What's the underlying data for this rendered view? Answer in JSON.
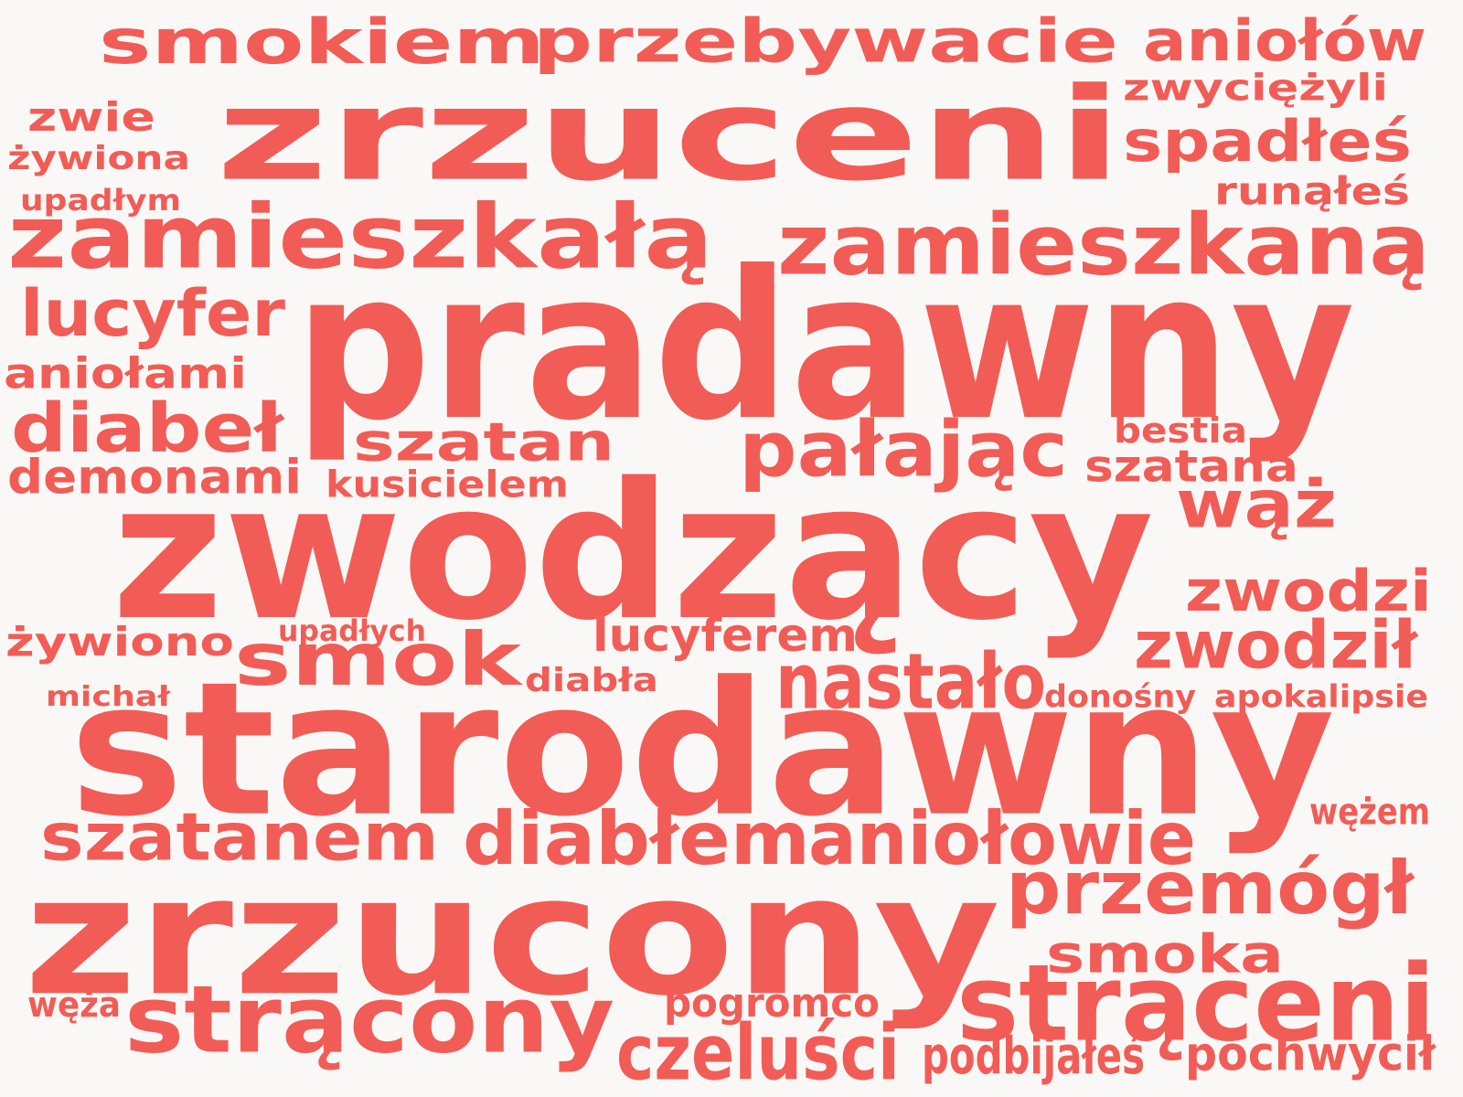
{
  "colors": {
    "background": "#f9f8f6",
    "word": "#f25c56"
  },
  "words": [
    "smokiem",
    "przebywacie",
    "aniołów",
    "zrzuceni",
    "zwyciężyli",
    "zwie",
    "spadłeś",
    "żywiona",
    "upadłym",
    "runąłeś",
    "zamieszkałą",
    "zamieszkaną",
    "lucyfer",
    "pradawny",
    "aniołami",
    "diabeł",
    "bestia",
    "szatan",
    "pałając",
    "szatana",
    "demonami",
    "kusicielem",
    "wąż",
    "zwodzący",
    "zwodzi",
    "upadłych",
    "żywiono",
    "lucyferem",
    "zwodził",
    "smok",
    "diabła",
    "michał",
    "nastało",
    "donośny",
    "apokalipsie",
    "starodawny",
    "wężem",
    "szatanem",
    "diabłem",
    "aniołowie",
    "zrzucony",
    "przemógł",
    "smoka",
    "węża",
    "pogromco",
    "strącony",
    "strąceni",
    "czeluści",
    "podbijałeś",
    "pochwycił"
  ]
}
